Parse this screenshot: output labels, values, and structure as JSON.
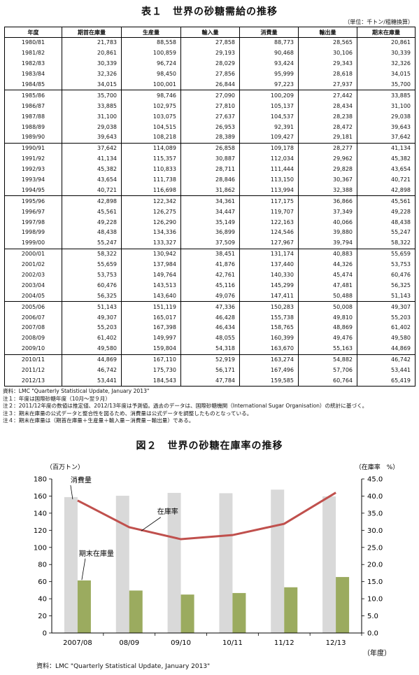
{
  "table": {
    "title": "表１　世界の砂糖需給の推移",
    "unit": "（単位：千トン/粗糖換算）",
    "headers": [
      "年度",
      "期首在庫量",
      "生産量",
      "輸入量",
      "消費量",
      "輸出量",
      "期末在庫量"
    ],
    "groups": [
      [
        [
          "1980/81",
          "21,783",
          "88,558",
          "27,858",
          "88,773",
          "28,565",
          "20,861"
        ],
        [
          "1981/82",
          "20,861",
          "100,859",
          "29,193",
          "90,468",
          "30,106",
          "30,339"
        ],
        [
          "1982/83",
          "30,339",
          "96,724",
          "28,029",
          "93,424",
          "29,343",
          "32,326"
        ],
        [
          "1983/84",
          "32,326",
          "98,450",
          "27,856",
          "95,999",
          "28,618",
          "34,015"
        ],
        [
          "1984/85",
          "34,015",
          "100,001",
          "26,844",
          "97,223",
          "27,937",
          "35,700"
        ]
      ],
      [
        [
          "1985/86",
          "35,700",
          "98,746",
          "27,090",
          "100,209",
          "27,442",
          "33,885"
        ],
        [
          "1986/87",
          "33,885",
          "102,975",
          "27,810",
          "105,137",
          "28,434",
          "31,100"
        ],
        [
          "1987/88",
          "31,100",
          "103,075",
          "27,637",
          "104,537",
          "28,238",
          "29,038"
        ],
        [
          "1988/89",
          "29,038",
          "104,515",
          "26,953",
          "92,391",
          "28,472",
          "39,643"
        ],
        [
          "1989/90",
          "39,643",
          "108,218",
          "28,389",
          "109,427",
          "29,181",
          "37,642"
        ]
      ],
      [
        [
          "1990/91",
          "37,642",
          "114,089",
          "26,858",
          "109,178",
          "28,277",
          "41,134"
        ],
        [
          "1991/92",
          "41,134",
          "115,357",
          "30,887",
          "112,034",
          "29,962",
          "45,382"
        ],
        [
          "1992/93",
          "45,382",
          "110,833",
          "28,711",
          "111,444",
          "29,828",
          "43,654"
        ],
        [
          "1993/94",
          "43,654",
          "111,738",
          "28,846",
          "113,150",
          "30,367",
          "40,721"
        ],
        [
          "1994/95",
          "40,721",
          "116,698",
          "31,862",
          "113,994",
          "32,388",
          "42,898"
        ]
      ],
      [
        [
          "1995/96",
          "42,898",
          "122,342",
          "34,361",
          "117,175",
          "36,866",
          "45,561"
        ],
        [
          "1996/97",
          "45,561",
          "126,275",
          "34,447",
          "119,707",
          "37,349",
          "49,228"
        ],
        [
          "1997/98",
          "49,228",
          "126,290",
          "35,149",
          "122,163",
          "40,066",
          "48,438"
        ],
        [
          "1998/99",
          "48,438",
          "134,336",
          "36,899",
          "124,546",
          "39,880",
          "55,247"
        ],
        [
          "1999/00",
          "55,247",
          "133,327",
          "37,509",
          "127,967",
          "39,794",
          "58,322"
        ]
      ],
      [
        [
          "2000/01",
          "58,322",
          "130,942",
          "38,451",
          "131,174",
          "40,883",
          "55,659"
        ],
        [
          "2001/02",
          "55,659",
          "137,984",
          "41,876",
          "137,440",
          "44,326",
          "53,753"
        ],
        [
          "2002/03",
          "53,753",
          "149,764",
          "42,761",
          "140,330",
          "45,474",
          "60,476"
        ],
        [
          "2003/04",
          "60,476",
          "143,513",
          "45,116",
          "145,299",
          "47,481",
          "56,325"
        ],
        [
          "2004/05",
          "56,325",
          "143,640",
          "49,076",
          "147,411",
          "50,488",
          "51,143"
        ]
      ],
      [
        [
          "2005/06",
          "51,143",
          "151,119",
          "47,336",
          "150,283",
          "50,008",
          "49,307"
        ],
        [
          "2006/07",
          "49,307",
          "165,017",
          "46,428",
          "155,738",
          "49,810",
          "55,203"
        ],
        [
          "2007/08",
          "55,203",
          "167,398",
          "46,434",
          "158,765",
          "48,869",
          "61,402"
        ],
        [
          "2008/09",
          "61,402",
          "149,997",
          "48,055",
          "160,399",
          "49,476",
          "49,580"
        ],
        [
          "2009/10",
          "49,580",
          "159,804",
          "54,318",
          "163,670",
          "55,163",
          "44,869"
        ]
      ],
      [
        [
          "2010/11",
          "44,869",
          "167,110",
          "52,919",
          "163,274",
          "54,882",
          "46,742"
        ],
        [
          "2011/12",
          "46,742",
          "175,730",
          "56,171",
          "167,496",
          "57,706",
          "53,441"
        ],
        [
          "2012/13",
          "53,441",
          "184,543",
          "47,784",
          "159,585",
          "60,764",
          "65,419"
        ]
      ]
    ]
  },
  "notes": [
    "資料：LMC \"Quarterly Statistical Update, January 2013\"",
    "注１：年度は国際砂糖年度（10月～翌９月）",
    "注２：2011/12年度の数値は推定値、2012/13年度は予測値。過去のデータは、国際砂糖機関（International Sugar Organisation）の統計に基づく。",
    "注３：期末在庫量の公式データと整合性を図るため、消費量は公式データを調整したものとなっている。",
    "注４：期末在庫量は（期首在庫量＋生産量＋輸入量－消費量－輸出量）である。"
  ],
  "figure": {
    "title": "図２　世界の砂糖在庫率の推移",
    "source": "資料：LMC \"Quarterly Statistical Update, January 2013\""
  },
  "chart_data": {
    "type": "bar",
    "categories": [
      "2007/08",
      "08/09",
      "09/10",
      "10/11",
      "11/12",
      "12/13"
    ],
    "series": [
      {
        "name": "消費量",
        "type": "bar",
        "axis": "left",
        "values": [
          158.8,
          160.4,
          163.7,
          163.3,
          167.5,
          159.6
        ],
        "color": "#d9d9d9"
      },
      {
        "name": "期末在庫量",
        "type": "bar",
        "axis": "left",
        "values": [
          61.4,
          49.6,
          44.9,
          46.7,
          53.4,
          65.4
        ],
        "color": "#9bab5f"
      },
      {
        "name": "在庫率",
        "type": "line",
        "axis": "right",
        "values": [
          38.7,
          30.9,
          27.4,
          28.6,
          31.9,
          41.0
        ],
        "color": "#c0504d"
      }
    ],
    "ylabel_left": "（百万トン）",
    "ylabel_right": "（在庫率　%）",
    "xlabel": "（年度）",
    "ylim_left": [
      0,
      180
    ],
    "ylim_right": [
      0,
      45
    ],
    "yticks_left": [
      "0",
      "20",
      "40",
      "60",
      "80",
      "100",
      "120",
      "140",
      "160",
      "180"
    ],
    "yticks_right": [
      "0.0",
      "5.0",
      "10.0",
      "15.0",
      "20.0",
      "25.0",
      "30.0",
      "35.0",
      "40.0",
      "45.0"
    ],
    "grid": false,
    "legend": "annotations"
  }
}
